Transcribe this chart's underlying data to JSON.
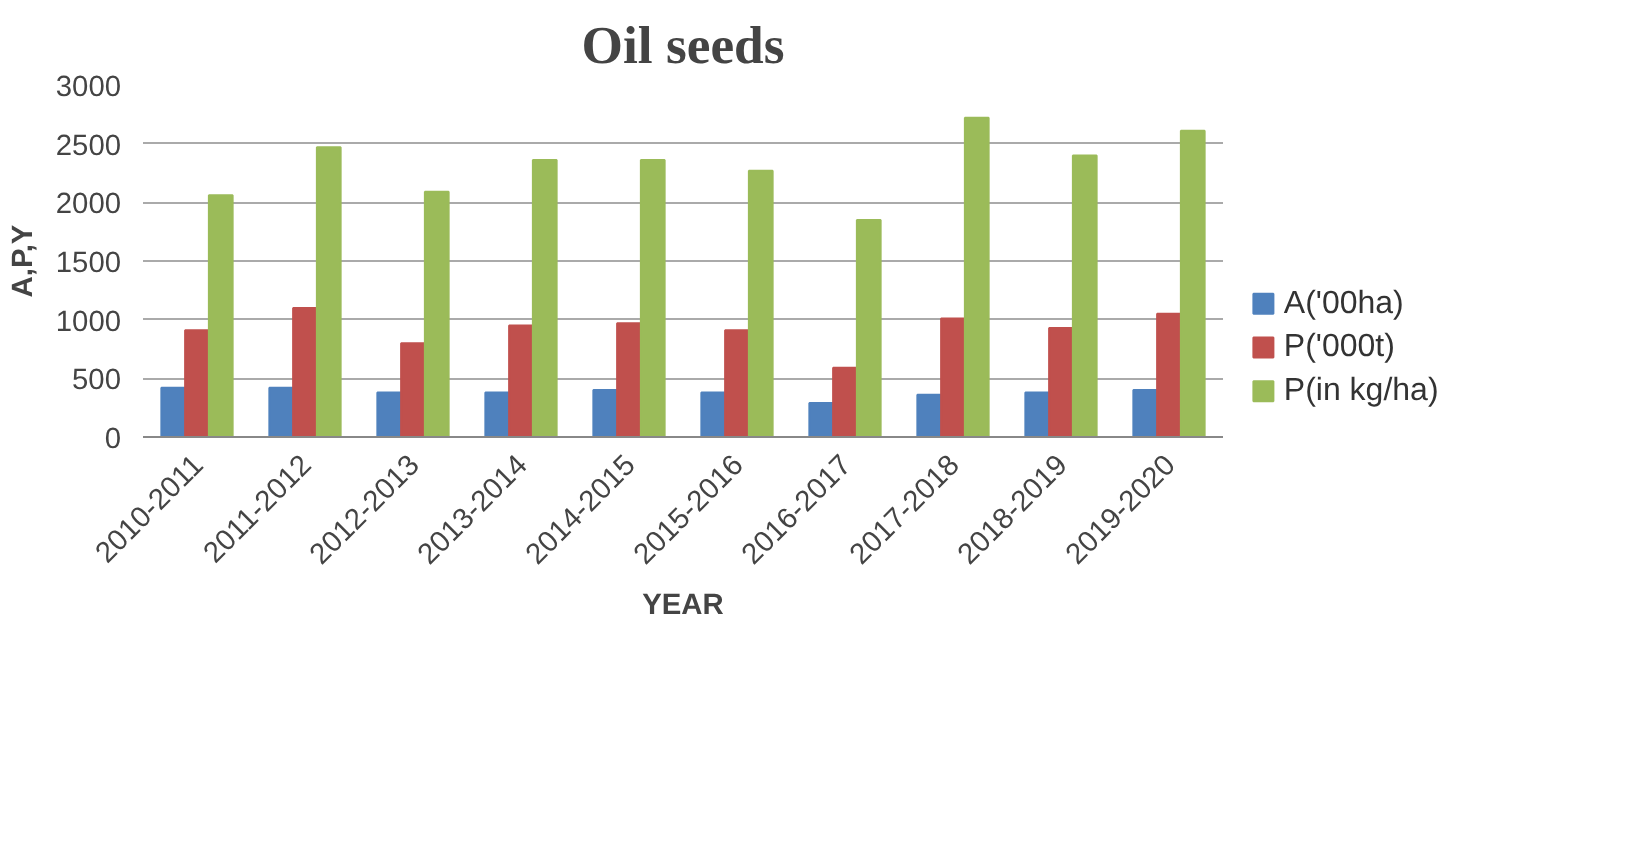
{
  "chart_data": {
    "type": "bar",
    "title": "Oil seeds",
    "xlabel": "YEAR",
    "ylabel": "A,P,Y",
    "categories": [
      "2010-2011",
      "2011-2012",
      "2012-2013",
      "2013-2014",
      "2014-2015",
      "2015-2016",
      "2016-2017",
      "2017-2018",
      "2018-2019",
      "2019-2020"
    ],
    "series": [
      {
        "name": "A('00ha)",
        "color": "#4f81bd",
        "values": [
          420,
          420,
          380,
          380,
          400,
          380,
          290,
          360,
          380,
          400
        ]
      },
      {
        "name": "P('000t)",
        "color": "#c0504d",
        "values": [
          910,
          1100,
          800,
          950,
          970,
          910,
          590,
          1010,
          930,
          1050
        ]
      },
      {
        "name": "P(in kg/ha)",
        "color": "#9bbb59",
        "values": [
          2060,
          2470,
          2090,
          2360,
          2360,
          2270,
          1850,
          2720,
          2400,
          2610
        ]
      }
    ],
    "ylim": [
      0,
      3000
    ],
    "yticks": [
      0,
      500,
      1000,
      1500,
      2000,
      2500,
      3000
    ],
    "grid": "y",
    "legend": "right"
  }
}
